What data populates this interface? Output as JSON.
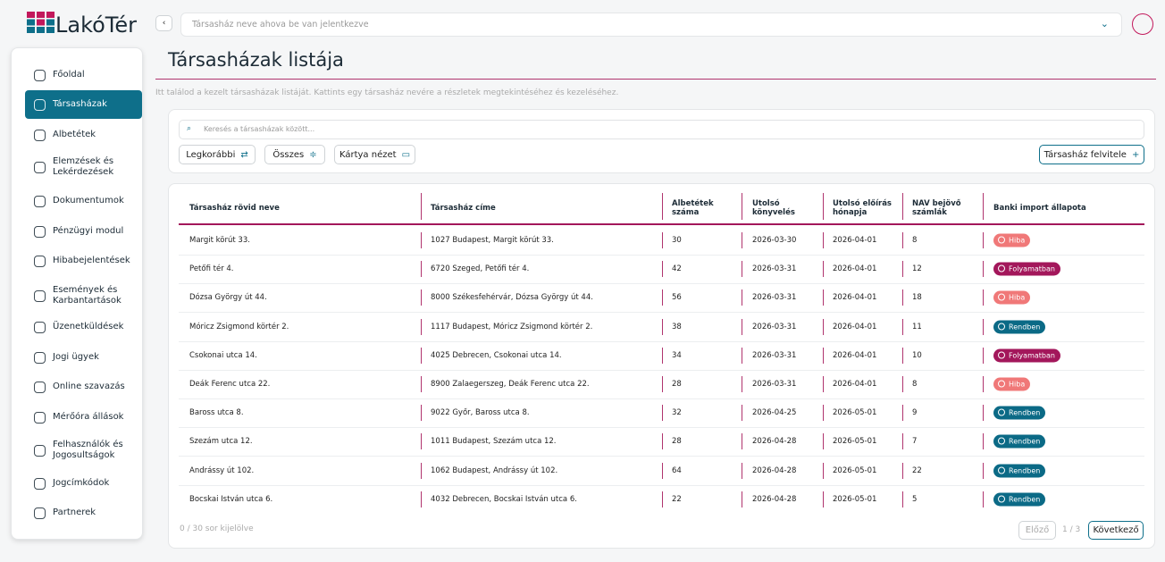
{
  "logo": "LakóTér",
  "sidebar": {
    "items": [
      "Főoldal",
      "Társasházak",
      "Albetétek",
      "Elemzések és Lekérdezések",
      "Dokumentumok",
      "Pénzügyi modul",
      "Hibabejelentések",
      "Események és Karbantartások",
      "Üzenetküldések",
      "Jogi ügyek",
      "Online szavazás",
      "Mérőóra állások",
      "Felhasználók és Jogosultságok",
      "Jogcímkódok",
      "Partnerek"
    ],
    "active": 1
  },
  "topbar": {
    "select_placeholder": "Társasház neve ahova be van jelentkezve"
  },
  "header": {
    "title": "Társasházak listája",
    "subtitle": "Itt találod a kezelt társasházak listáját. Kattints egy társasház nevére a részletek megtekintéséhez és kezeléséhez."
  },
  "toolbar": {
    "search_placeholder": "Keresés a társasházak között...",
    "filters": [
      "Legkorábbi",
      "Összes",
      "Kártya nézet"
    ],
    "add_button": "Társasház felvitele"
  },
  "table": {
    "columns": [
      "Társasház rövid neve",
      "Társasház címe",
      "Albetétek száma",
      "Utolsó könyvelés",
      "Utolsó előírás hónapja",
      "NAV bejövő számlák",
      "Banki import állapota"
    ],
    "rows": [
      [
        "Margit körút 33.",
        "1027 Budapest, Margit körút 33.",
        30,
        "2026-03-30",
        "2026-04-01",
        8,
        {
          "label": "Hiba",
          "color": "#f07878"
        }
      ],
      [
        "Petőfi tér 4.",
        "6720 Szeged, Petőfi tér 4.",
        42,
        "2026-03-31",
        "2026-04-01",
        12,
        {
          "label": "Folyamatban",
          "color": "#a3175b"
        }
      ],
      [
        "Dózsa György út 44.",
        "8000 Székesfehérvár, Dózsa György út 44.",
        56,
        "2026-03-31",
        "2026-04-01",
        18,
        {
          "label": "Hiba",
          "color": "#f07878"
        }
      ],
      [
        "Móricz Zsigmond körtér 2.",
        "1117 Budapest, Móricz Zsigmond körtér 2.",
        38,
        "2026-03-31",
        "2026-04-01",
        11,
        {
          "label": "Rendben",
          "color": "#0b6a86"
        }
      ],
      [
        "Csokonai utca 14.",
        "4025 Debrecen, Csokonai utca 14.",
        34,
        "2026-03-31",
        "2026-04-01",
        10,
        {
          "label": "Folyamatban",
          "color": "#a3175b"
        }
      ],
      [
        "Deák Ferenc utca 22.",
        "8900 Zalaegerszeg, Deák Ferenc utca 22.",
        28,
        "2026-03-31",
        "2026-04-01",
        8,
        {
          "label": "Hiba",
          "color": "#f07878"
        }
      ],
      [
        "Baross utca 8.",
        "9022 Győr, Baross utca 8.",
        32,
        "2026-04-25",
        "2026-05-01",
        9,
        {
          "label": "Rendben",
          "color": "#0b6a86"
        }
      ],
      [
        "Szezám utca 12.",
        "1011 Budapest, Szezám utca 12.",
        28,
        "2026-04-28",
        "2026-05-01",
        7,
        {
          "label": "Rendben",
          "color": "#0b6a86"
        }
      ],
      [
        "Andrássy út 102.",
        "1062 Budapest, Andrássy út 102.",
        64,
        "2026-04-28",
        "2026-05-01",
        22,
        {
          "label": "Rendben",
          "color": "#0b6a86"
        }
      ],
      [
        "Bocskai István utca 6.",
        "4032 Debrecen, Bocskai István utca 6.",
        22,
        "2026-04-28",
        "2026-05-01",
        5,
        {
          "label": "Rendben",
          "color": "#0b6a86"
        }
      ]
    ]
  },
  "footer": {
    "selection": "0 / 30 sor kijelölve",
    "prev": "Előző",
    "page": "1 / 3",
    "next": "Következő"
  }
}
